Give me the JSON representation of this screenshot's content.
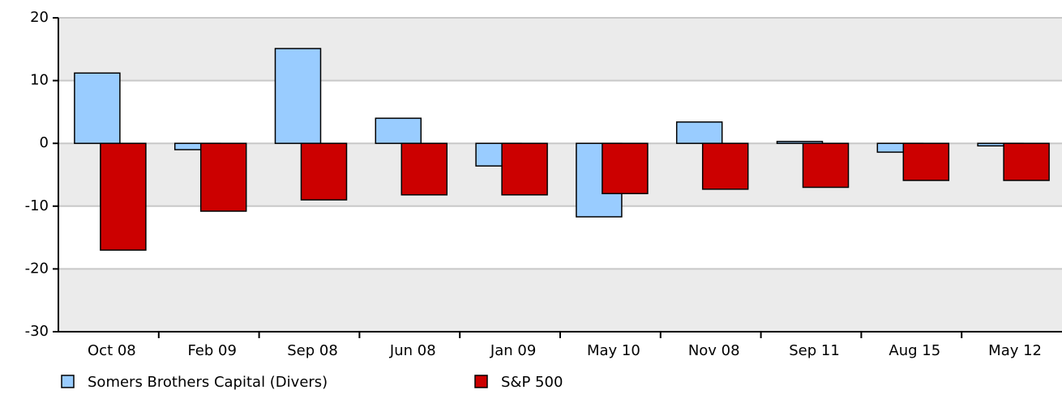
{
  "chart_data": {
    "type": "bar",
    "categories": [
      "Oct 08",
      "Feb 09",
      "Sep 08",
      "Jun 08",
      "Jan 09",
      "May 10",
      "Nov 08",
      "Sep 11",
      "Aug 15",
      "May 12"
    ],
    "series": [
      {
        "name": "Somers Brothers Capital (Divers)",
        "color": "#99ccff",
        "values": [
          11.2,
          -1.0,
          15.1,
          4.0,
          -3.6,
          -11.7,
          3.4,
          0.3,
          -1.4,
          -0.4
        ]
      },
      {
        "name": "S&P 500",
        "color": "#cc0000",
        "values": [
          -17.0,
          -10.8,
          -9.0,
          -8.2,
          -8.2,
          -8.0,
          -7.3,
          -7.0,
          -5.9,
          -5.9
        ]
      }
    ],
    "ylim": [
      -30,
      20
    ],
    "yticks": [
      -30,
      -20,
      -10,
      0,
      10,
      20
    ],
    "grid": true
  }
}
